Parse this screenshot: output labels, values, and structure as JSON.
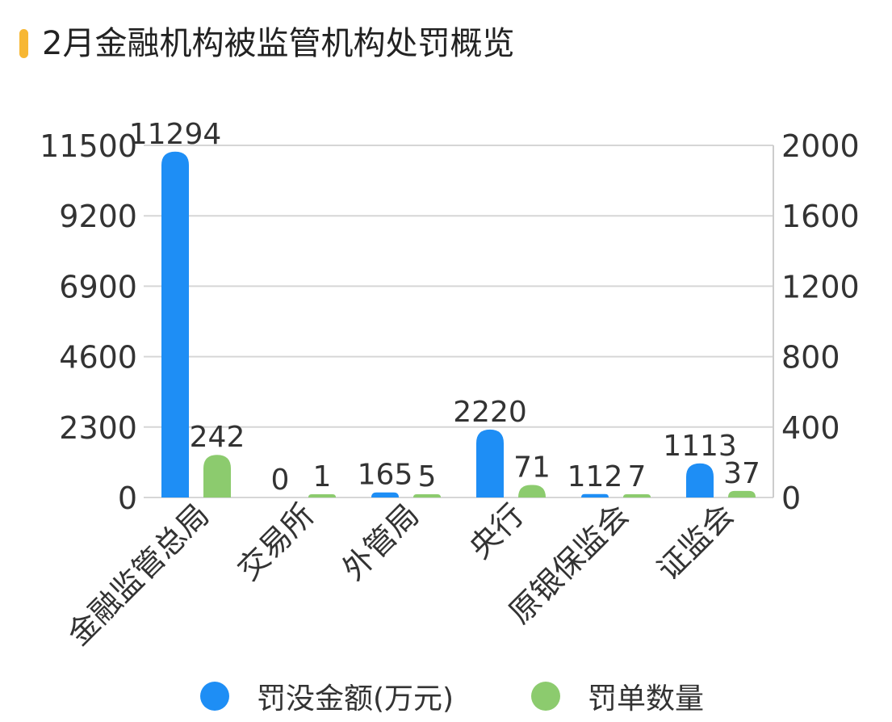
{
  "page": {
    "title": "2月金融机构被监管机构处罚概览",
    "accent_color": "#F7B733"
  },
  "chart_data": {
    "type": "bar",
    "categories": [
      "金融监管总局",
      "交易所",
      "外管局",
      "央行",
      "原银保监会",
      "证监会"
    ],
    "series": [
      {
        "name": "罚没金额(万元)",
        "axis": "left",
        "color": "#1E8EF5",
        "values": [
          11294,
          0,
          165,
          2220,
          112,
          1113
        ],
        "labels": [
          "11294",
          "0",
          "165",
          "2220",
          "112",
          "1113"
        ]
      },
      {
        "name": "罚单数量",
        "axis": "right",
        "color": "#8CCB6E",
        "values": [
          242,
          1,
          5,
          71,
          7,
          37
        ],
        "labels": [
          "242",
          "1",
          "5",
          "71",
          "7",
          "37"
        ]
      }
    ],
    "y_left": {
      "ylim": [
        0,
        11500
      ],
      "ticks": [
        "0",
        "2300",
        "4600",
        "6900",
        "9200",
        "11500"
      ]
    },
    "y_right": {
      "ylim": [
        0,
        2000
      ],
      "ticks": [
        "0",
        "400",
        "800",
        "1200",
        "1600",
        "2000"
      ]
    },
    "grid": true,
    "legend": "bottom-center",
    "label_rotation": -45
  },
  "legend": {
    "items": [
      {
        "label": "罚没金额(万元)",
        "color": "#1E8EF5"
      },
      {
        "label": "罚单数量",
        "color": "#8CCB6E"
      }
    ]
  }
}
